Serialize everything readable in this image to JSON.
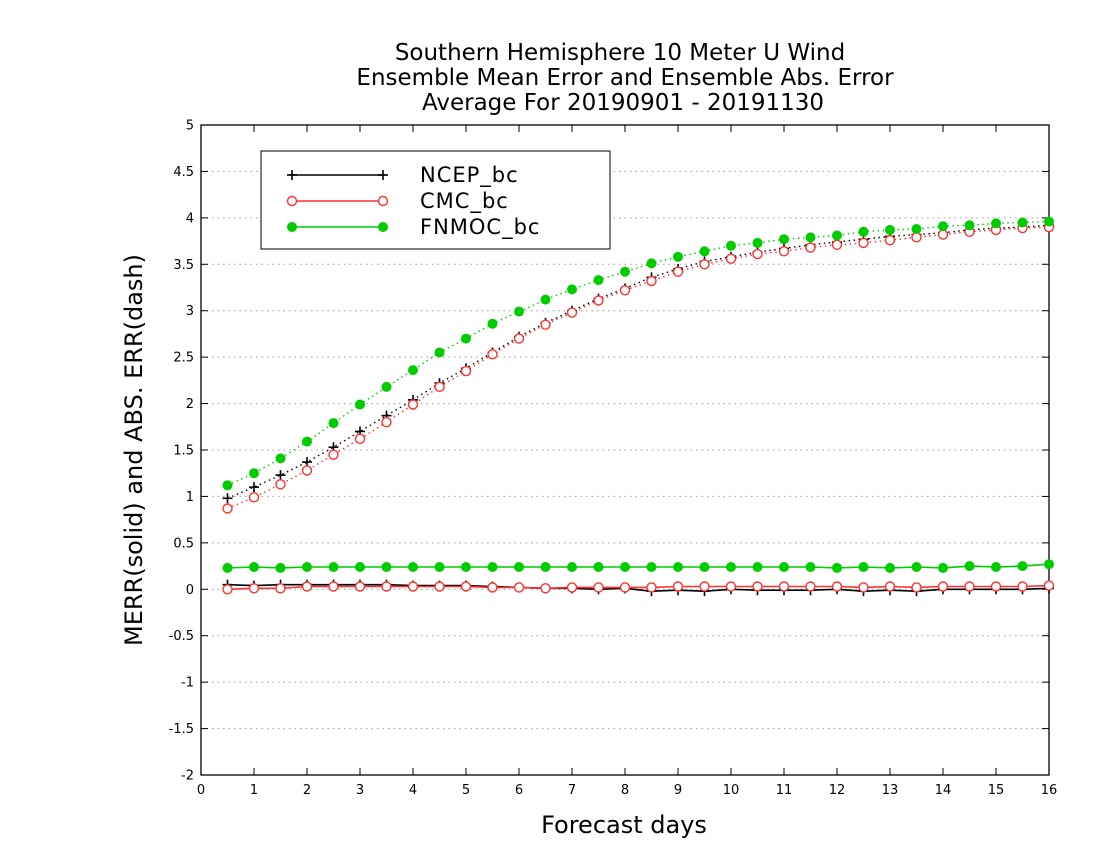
{
  "chart_data": {
    "type": "line",
    "title": [
      "Southern Hemisphere 10 Meter U Wind",
      "Ensemble Mean Error and Ensemble Abs. Error",
      "Average For 20190901 - 20191130"
    ],
    "xlabel": "Forecast days",
    "ylabel": "MERR(solid) and ABS. ERR(dash)",
    "xlim": [
      0,
      16
    ],
    "ylim": [
      -2,
      5
    ],
    "xticks": [
      0,
      1,
      2,
      3,
      4,
      5,
      6,
      7,
      8,
      9,
      10,
      11,
      12,
      13,
      14,
      15,
      16
    ],
    "yticks": [
      -2,
      -1.5,
      -1,
      -0.5,
      0,
      0.5,
      1,
      1.5,
      2,
      2.5,
      3,
      3.5,
      4,
      4.5,
      5
    ],
    "ytick_labels": [
      "-2",
      "-1.5",
      "-1",
      "-0.5",
      "0",
      "0.5",
      "1",
      "1.5",
      "2",
      "2.5",
      "3",
      "3.5",
      "4",
      "4.5",
      "5"
    ],
    "grid": "horizontal dotted",
    "legend_position": "top-left",
    "x": [
      0.5,
      1,
      1.5,
      2,
      2.5,
      3,
      3.5,
      4,
      4.5,
      5,
      5.5,
      6,
      6.5,
      7,
      7.5,
      8,
      8.5,
      9,
      9.5,
      10,
      10.5,
      11,
      11.5,
      12,
      12.5,
      13,
      13.5,
      14,
      14.5,
      15,
      15.5,
      16
    ],
    "series": [
      {
        "name": "NCEP_bc",
        "color": "#000000",
        "marker": "plus",
        "merr": [
          0.05,
          0.04,
          0.05,
          0.05,
          0.05,
          0.05,
          0.05,
          0.04,
          0.04,
          0.04,
          0.03,
          0.02,
          0.01,
          0.01,
          0.0,
          0.01,
          -0.02,
          -0.01,
          -0.02,
          0.0,
          -0.01,
          -0.01,
          -0.01,
          0.0,
          -0.02,
          -0.01,
          -0.02,
          0.0,
          0.0,
          0.0,
          0.0,
          0.01
        ],
        "abserr": [
          0.98,
          1.1,
          1.23,
          1.37,
          1.53,
          1.7,
          1.87,
          2.04,
          2.22,
          2.38,
          2.55,
          2.72,
          2.87,
          3.0,
          3.13,
          3.24,
          3.36,
          3.45,
          3.53,
          3.58,
          3.63,
          3.67,
          3.71,
          3.74,
          3.77,
          3.8,
          3.82,
          3.84,
          3.87,
          3.89,
          3.9,
          3.92
        ]
      },
      {
        "name": "CMC_bc",
        "color": "#ff3030",
        "marker": "open-circle",
        "merr": [
          0.0,
          0.01,
          0.01,
          0.03,
          0.03,
          0.03,
          0.03,
          0.03,
          0.03,
          0.03,
          0.02,
          0.02,
          0.01,
          0.02,
          0.02,
          0.02,
          0.02,
          0.03,
          0.03,
          0.03,
          0.03,
          0.03,
          0.03,
          0.03,
          0.02,
          0.03,
          0.02,
          0.03,
          0.03,
          0.03,
          0.03,
          0.04
        ],
        "abserr": [
          0.87,
          0.99,
          1.13,
          1.28,
          1.45,
          1.62,
          1.8,
          1.99,
          2.18,
          2.35,
          2.53,
          2.7,
          2.85,
          2.98,
          3.11,
          3.22,
          3.32,
          3.42,
          3.5,
          3.56,
          3.61,
          3.64,
          3.68,
          3.71,
          3.73,
          3.76,
          3.79,
          3.82,
          3.85,
          3.87,
          3.89,
          3.9
        ]
      },
      {
        "name": "FNMOC_bc",
        "color": "#00cc00",
        "marker": "filled-circle",
        "merr": [
          0.23,
          0.24,
          0.23,
          0.24,
          0.24,
          0.24,
          0.24,
          0.24,
          0.24,
          0.24,
          0.24,
          0.24,
          0.24,
          0.24,
          0.24,
          0.24,
          0.24,
          0.24,
          0.24,
          0.24,
          0.24,
          0.24,
          0.24,
          0.23,
          0.24,
          0.23,
          0.24,
          0.23,
          0.25,
          0.24,
          0.25,
          0.27
        ],
        "abserr": [
          1.12,
          1.25,
          1.41,
          1.59,
          1.79,
          1.99,
          2.18,
          2.36,
          2.55,
          2.7,
          2.86,
          2.99,
          3.12,
          3.23,
          3.33,
          3.42,
          3.51,
          3.58,
          3.64,
          3.7,
          3.73,
          3.77,
          3.79,
          3.81,
          3.85,
          3.87,
          3.88,
          3.91,
          3.92,
          3.94,
          3.95,
          3.96
        ]
      }
    ]
  }
}
